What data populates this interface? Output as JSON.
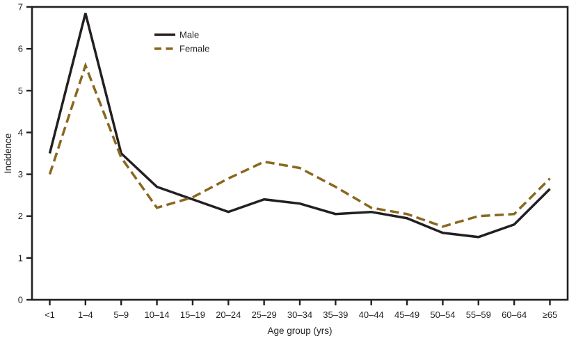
{
  "chart_data": {
    "type": "line",
    "title": "",
    "xlabel": "Age group (yrs)",
    "ylabel": "Incidence",
    "ylim": [
      0,
      7
    ],
    "yticks": [
      "0",
      "1",
      "2",
      "3",
      "4",
      "5",
      "6",
      "7"
    ],
    "grid": false,
    "legend_position": "top-left-inside",
    "categories": [
      "<1",
      "1–4",
      "5–9",
      "10–14",
      "15–19",
      "20–24",
      "25–29",
      "30–34",
      "35–39",
      "40–44",
      "45–49",
      "50–54",
      "55–59",
      "60–64",
      "≥65"
    ],
    "series": [
      {
        "name": "Male",
        "style": "solid",
        "color": "#231f20",
        "values": [
          3.5,
          6.85,
          3.5,
          2.7,
          2.4,
          2.1,
          2.4,
          2.3,
          2.05,
          2.1,
          1.95,
          1.6,
          1.5,
          1.8,
          2.65
        ]
      },
      {
        "name": "Female",
        "style": "dashed",
        "color": "#8a671e",
        "values": [
          3.0,
          5.6,
          3.4,
          2.2,
          2.45,
          2.9,
          3.3,
          3.15,
          2.7,
          2.2,
          2.05,
          1.75,
          2.0,
          2.05,
          2.9
        ]
      }
    ],
    "axis_color": "#231f20",
    "text_color": "#231f20"
  }
}
